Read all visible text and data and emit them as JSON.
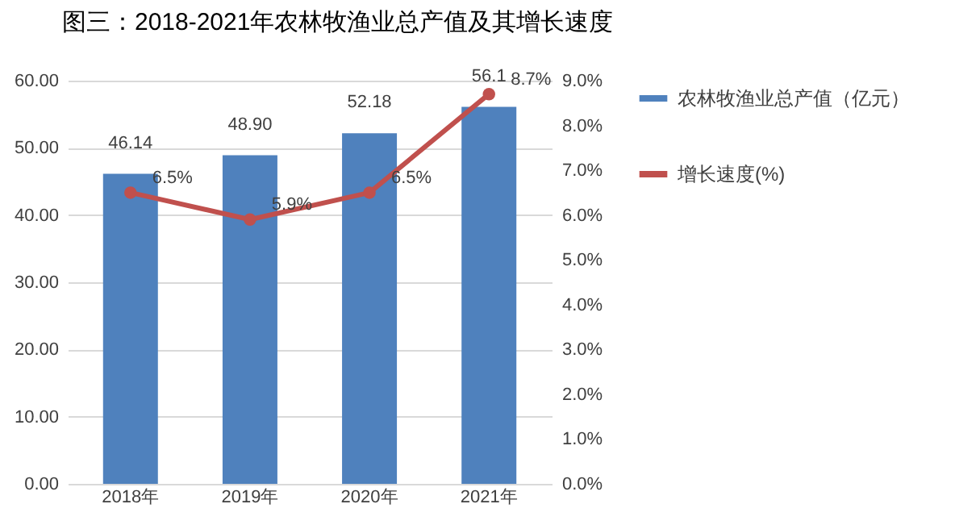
{
  "chart_data": {
    "type": "bar",
    "title": "图三：2018-2021年农林牧渔业总产值及其增长速度",
    "categories": [
      "2018年",
      "2019年",
      "2020年",
      "2021年"
    ],
    "series": [
      {
        "name": "农林牧渔业总产值（亿元）",
        "color": "#4f81bd",
        "values": [
          46.14,
          48.9,
          52.18,
          56.1
        ],
        "value_labels": [
          "46.14",
          "48.90",
          "52.18",
          "56.1"
        ]
      },
      {
        "name": "增长速度(%)",
        "type": "line",
        "axis": "y2",
        "color": "#c0504d",
        "values": [
          6.5,
          5.9,
          6.5,
          8.7
        ],
        "value_labels": [
          "6.5%",
          "5.9%",
          "6.5%",
          "8.7%"
        ]
      }
    ],
    "ylim": [
      0,
      60
    ],
    "yticks": [
      {
        "value": 0,
        "label": "0.00"
      },
      {
        "value": 10,
        "label": "10.00"
      },
      {
        "value": 20,
        "label": "20.00"
      },
      {
        "value": 30,
        "label": "30.00"
      },
      {
        "value": 40,
        "label": "40.00"
      },
      {
        "value": 50,
        "label": "50.00"
      },
      {
        "value": 60,
        "label": "60.00"
      }
    ],
    "y2lim": [
      0,
      9
    ],
    "y2ticks": [
      {
        "value": 0,
        "label": "0.0%"
      },
      {
        "value": 1,
        "label": "1.0%"
      },
      {
        "value": 2,
        "label": "2.0%"
      },
      {
        "value": 3,
        "label": "3.0%"
      },
      {
        "value": 4,
        "label": "4.0%"
      },
      {
        "value": 5,
        "label": "5.0%"
      },
      {
        "value": 6,
        "label": "6.0%"
      },
      {
        "value": 7,
        "label": "7.0%"
      },
      {
        "value": 8,
        "label": "8.0%"
      },
      {
        "value": 9,
        "label": "9.0%"
      }
    ],
    "grid": "y",
    "legend": "right",
    "marker": "circle",
    "line_style": "solid"
  }
}
